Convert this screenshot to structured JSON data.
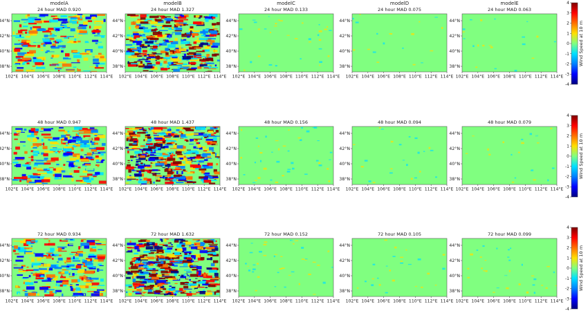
{
  "figure": {
    "columns": [
      "modelA",
      "modelB",
      "modelC",
      "modelD",
      "modelE"
    ],
    "colorbar": {
      "label": "Wind Speed at 10 m",
      "ticks": [
        4,
        3,
        2,
        1,
        0,
        -1,
        -2,
        -3,
        -4
      ]
    },
    "colormap": [
      "#00007f",
      "#0000ff",
      "#0080ff",
      "#00e0ff",
      "#80ff80",
      "#ffe000",
      "#ff7000",
      "#ff0000",
      "#7f0000"
    ]
  },
  "chart_data": {
    "type": "heatmap",
    "x_tick_labels": [
      "102°E",
      "104°E",
      "106°E",
      "108°E",
      "110°E",
      "112°E",
      "114°E"
    ],
    "y_tick_labels": [
      "44°N",
      "42°N",
      "40°N",
      "38°N"
    ],
    "value_range": [
      -4,
      4
    ],
    "panels": [
      {
        "model": "modelA",
        "title": "24 hour MAD 0.920",
        "mad": 0.92,
        "hours": 24
      },
      {
        "model": "modelB",
        "title": "24 hour MAD 1.327",
        "mad": 1.327,
        "hours": 24
      },
      {
        "model": "modelC",
        "title": "24 hour MAD 0.133",
        "mad": 0.133,
        "hours": 24
      },
      {
        "model": "modelD",
        "title": "24 hour MAD 0.075",
        "mad": 0.075,
        "hours": 24
      },
      {
        "model": "modelE",
        "title": "24 hour MAD 0.063",
        "mad": 0.063,
        "hours": 24
      },
      {
        "model": "modelA",
        "title": "48 hour MAD 0.947",
        "mad": 0.947,
        "hours": 48
      },
      {
        "model": "modelB",
        "title": "48 hour MAD 1.437",
        "mad": 1.437,
        "hours": 48
      },
      {
        "model": "modelC",
        "title": "48 hour MAD 0.156",
        "mad": 0.156,
        "hours": 48
      },
      {
        "model": "modelD",
        "title": "48 hour MAD 0.094",
        "mad": 0.094,
        "hours": 48
      },
      {
        "model": "modelE",
        "title": "48 hour MAD 0.079",
        "mad": 0.079,
        "hours": 48
      },
      {
        "model": "modelA",
        "title": "72 hour MAD 0.934",
        "mad": 0.934,
        "hours": 72
      },
      {
        "model": "modelB",
        "title": "72 hour MAD 1.632",
        "mad": 1.632,
        "hours": 72
      },
      {
        "model": "modelC",
        "title": "72 hour MAD 0.152",
        "mad": 0.152,
        "hours": 72
      },
      {
        "model": "modelD",
        "title": "72 hour MAD 0.105",
        "mad": 0.105,
        "hours": 72
      },
      {
        "model": "modelE",
        "title": "72 hour MAD 0.099",
        "mad": 0.099,
        "hours": 72
      }
    ]
  }
}
